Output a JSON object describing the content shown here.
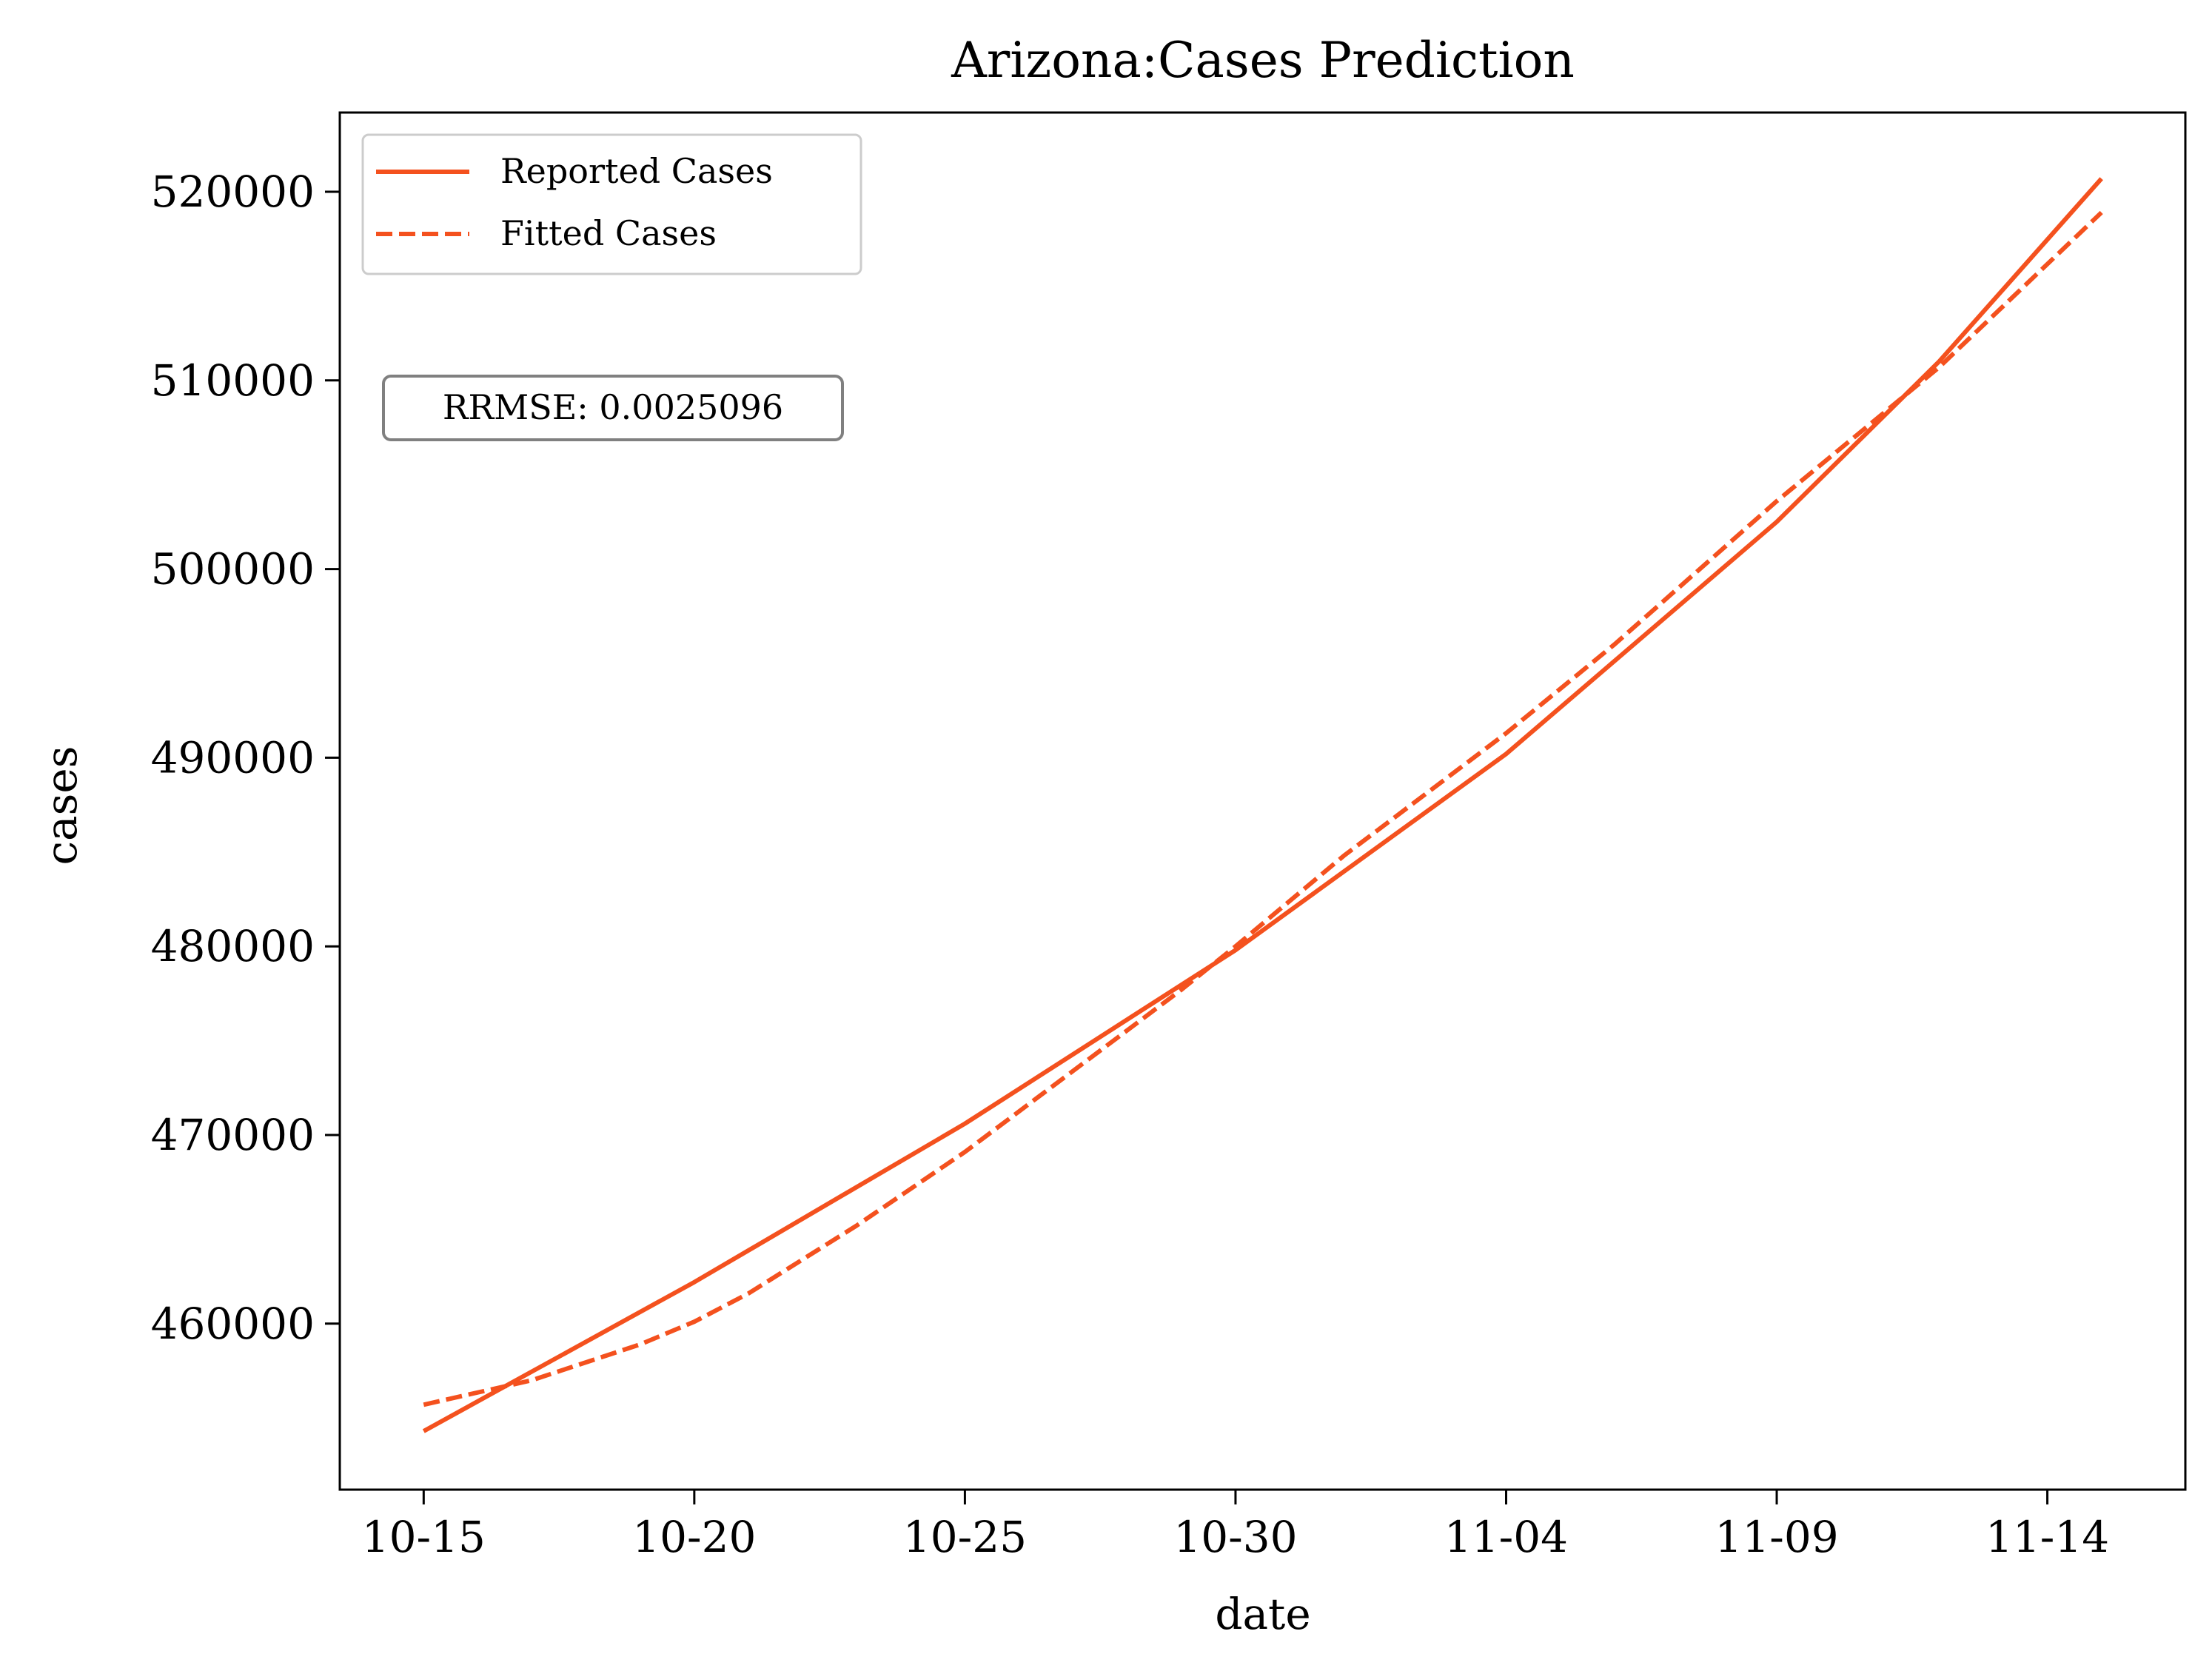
{
  "chart_data": {
    "type": "line",
    "title": "Arizona:Cases Prediction",
    "xlabel": "date",
    "ylabel": "cases",
    "x_tick_labels": [
      "10-15",
      "10-20",
      "10-25",
      "10-30",
      "11-04",
      "11-09",
      "11-14"
    ],
    "x_ticks": [
      0,
      5,
      10,
      15,
      20,
      25,
      30
    ],
    "xlim": [
      -1.55,
      32.55
    ],
    "y_ticks": [
      460000,
      470000,
      480000,
      490000,
      500000,
      510000,
      520000
    ],
    "ylim": [
      451200,
      524200
    ],
    "grid": false,
    "legend_position": "top-left",
    "annotation": "RRMSE: 0.0025096",
    "colors": {
      "series": "#f4511e",
      "axis": "#000000",
      "annotation_border": "#808080"
    },
    "series": [
      {
        "name": "Reported Cases",
        "style": "solid",
        "x": [
          0,
          5,
          10,
          15,
          20,
          25,
          28,
          31
        ],
        "y": [
          454300,
          462200,
          470600,
          479800,
          490200,
          502500,
          511000,
          520700
        ]
      },
      {
        "name": "Fitted Cases",
        "style": "dashed",
        "x": [
          0,
          2,
          4,
          5,
          6,
          8,
          10,
          12,
          14,
          15,
          17,
          20,
          22,
          25,
          28,
          31
        ],
        "y": [
          455700,
          457000,
          458900,
          460100,
          461600,
          465200,
          469100,
          473400,
          477700,
          480000,
          484800,
          491300,
          496000,
          503600,
          510700,
          518900
        ]
      }
    ]
  }
}
